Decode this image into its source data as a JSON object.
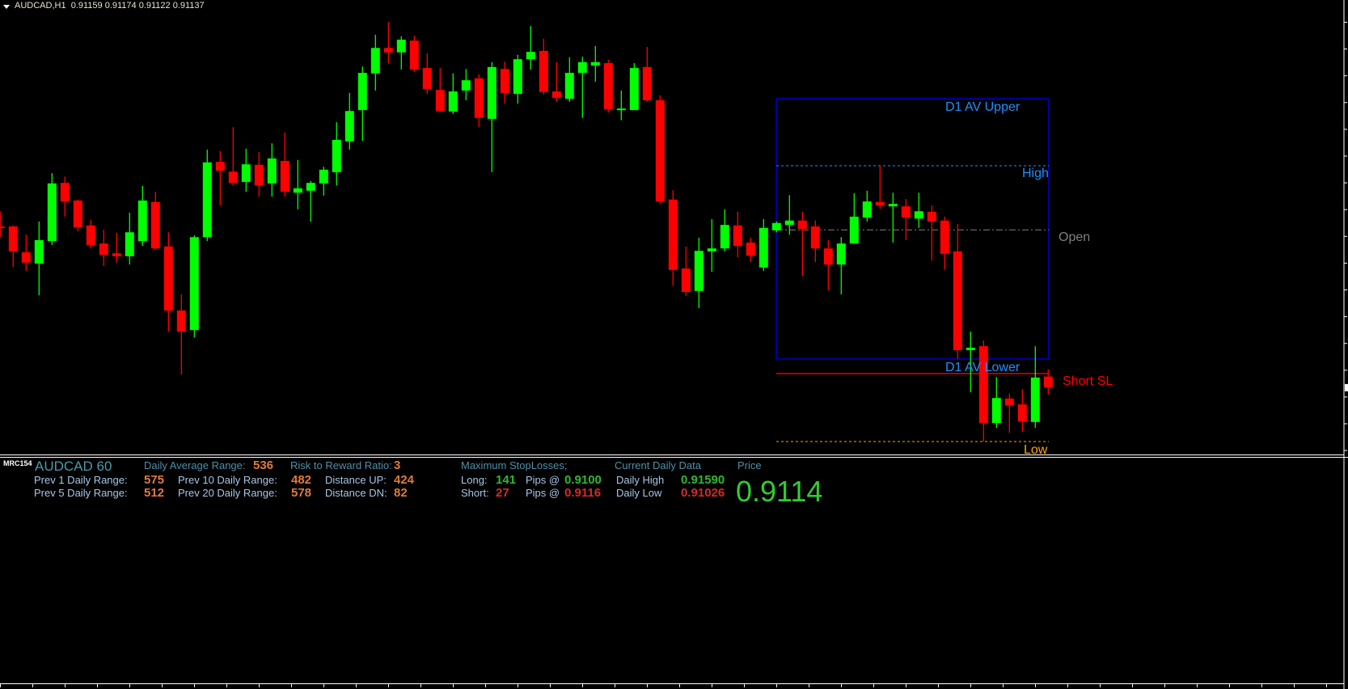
{
  "header": {
    "symbol_tf": "AUDCAD,H1",
    "ohlc": "0.91159 0.91174 0.91122 0.91137"
  },
  "chart_labels": {
    "d1_upper": "D1 AV Upper",
    "high": "High",
    "open": "Open",
    "d1_lower": "D1 AV Lower",
    "short_sl": "Short SL",
    "low": "Low"
  },
  "colors": {
    "bull": "#00ff00",
    "bear": "#ff0000",
    "box": "#0000a0",
    "high": "#1e90ff",
    "open": "#808080",
    "short_sl": "#ff0000",
    "low": "#ffa500"
  },
  "chart_data": {
    "type": "candlestick",
    "timeframe": "H1",
    "levels": {
      "d1_av_upper": 0.91727,
      "high": 0.9159,
      "open": 0.91459,
      "d1_av_lower": 0.91195,
      "short_sl": 0.91165,
      "low": 0.91026
    },
    "current_price": 0.91137,
    "box_start_index": 60,
    "candles_ohlc": [
      [
        0.91466,
        0.91497,
        0.91443,
        0.91464
      ],
      [
        0.91466,
        0.91468,
        0.91383,
        0.91415
      ],
      [
        0.91413,
        0.91449,
        0.91375,
        0.91392
      ],
      [
        0.9139,
        0.91476,
        0.91325,
        0.91438
      ],
      [
        0.91436,
        0.91575,
        0.91428,
        0.91554
      ],
      [
        0.91555,
        0.91568,
        0.91486,
        0.91517
      ],
      [
        0.91519,
        0.91521,
        0.91456,
        0.91464
      ],
      [
        0.91468,
        0.91479,
        0.91421,
        0.91428
      ],
      [
        0.91431,
        0.91459,
        0.91385,
        0.91408
      ],
      [
        0.91411,
        0.91453,
        0.91392,
        0.91405
      ],
      [
        0.91405,
        0.91494,
        0.91388,
        0.91454
      ],
      [
        0.91436,
        0.91549,
        0.91426,
        0.91519
      ],
      [
        0.91516,
        0.91537,
        0.91418,
        0.91421
      ],
      [
        0.91425,
        0.91454,
        0.91251,
        0.91294
      ],
      [
        0.91294,
        0.91327,
        0.91163,
        0.91251
      ],
      [
        0.91254,
        0.91448,
        0.91239,
        0.91444
      ],
      [
        0.91444,
        0.91623,
        0.91436,
        0.91597
      ],
      [
        0.91598,
        0.9162,
        0.91509,
        0.9158
      ],
      [
        0.91578,
        0.91669,
        0.91549,
        0.91555
      ],
      [
        0.91557,
        0.91625,
        0.91537,
        0.91593
      ],
      [
        0.91592,
        0.91618,
        0.91527,
        0.9155
      ],
      [
        0.91554,
        0.91636,
        0.91527,
        0.91605
      ],
      [
        0.916,
        0.91658,
        0.91527,
        0.91537
      ],
      [
        0.91535,
        0.91602,
        0.91501,
        0.91544
      ],
      [
        0.91539,
        0.91559,
        0.91476,
        0.91555
      ],
      [
        0.91554,
        0.91588,
        0.91529,
        0.91582
      ],
      [
        0.91577,
        0.91679,
        0.9155,
        0.91643
      ],
      [
        0.9164,
        0.91739,
        0.91623,
        0.91702
      ],
      [
        0.91704,
        0.91793,
        0.91641,
        0.9178
      ],
      [
        0.91779,
        0.91858,
        0.91744,
        0.91831
      ],
      [
        0.91831,
        0.91884,
        0.918,
        0.91822
      ],
      [
        0.91822,
        0.91855,
        0.91787,
        0.91848
      ],
      [
        0.91846,
        0.91856,
        0.91782,
        0.91787
      ],
      [
        0.9179,
        0.9182,
        0.91737,
        0.91747
      ],
      [
        0.91745,
        0.9179,
        0.91702,
        0.91702
      ],
      [
        0.91701,
        0.91779,
        0.91696,
        0.91742
      ],
      [
        0.91744,
        0.91788,
        0.91724,
        0.91765
      ],
      [
        0.91769,
        0.91777,
        0.91669,
        0.91688
      ],
      [
        0.91686,
        0.91802,
        0.91577,
        0.91792
      ],
      [
        0.91788,
        0.91803,
        0.91717,
        0.91739
      ],
      [
        0.91737,
        0.91817,
        0.91717,
        0.91808
      ],
      [
        0.91808,
        0.91876,
        0.91787,
        0.91823
      ],
      [
        0.91825,
        0.9185,
        0.91736,
        0.91741
      ],
      [
        0.91742,
        0.91802,
        0.91721,
        0.91729
      ],
      [
        0.91727,
        0.91812,
        0.91721,
        0.9178
      ],
      [
        0.9178,
        0.91813,
        0.91688,
        0.91802
      ],
      [
        0.91795,
        0.91835,
        0.91762,
        0.91802
      ],
      [
        0.918,
        0.91807,
        0.91699,
        0.91706
      ],
      [
        0.91706,
        0.91744,
        0.91683,
        0.91707
      ],
      [
        0.91704,
        0.918,
        0.91704,
        0.9179
      ],
      [
        0.91792,
        0.91833,
        0.91721,
        0.91724
      ],
      [
        0.91724,
        0.91734,
        0.91512,
        0.91517
      ],
      [
        0.91521,
        0.9154,
        0.91345,
        0.91377
      ],
      [
        0.9138,
        0.91425,
        0.91324,
        0.91332
      ],
      [
        0.91334,
        0.91443,
        0.91299,
        0.91416
      ],
      [
        0.91415,
        0.91481,
        0.91373,
        0.91421
      ],
      [
        0.91421,
        0.91501,
        0.91415,
        0.91469
      ],
      [
        0.91468,
        0.91496,
        0.91403,
        0.91426
      ],
      [
        0.91433,
        0.91443,
        0.91393,
        0.91406
      ],
      [
        0.91382,
        0.91481,
        0.91375,
        0.91463
      ],
      [
        0.91458,
        0.91476,
        0.91454,
        0.91473
      ],
      [
        0.91469,
        0.9153,
        0.91449,
        0.91478
      ],
      [
        0.91478,
        0.91496,
        0.91365,
        0.91461
      ],
      [
        0.91466,
        0.91478,
        0.91393,
        0.91421
      ],
      [
        0.91421,
        0.91438,
        0.91335,
        0.91388
      ],
      [
        0.91388,
        0.91444,
        0.91327,
        0.91431
      ],
      [
        0.91431,
        0.91534,
        0.91431,
        0.91486
      ],
      [
        0.91484,
        0.91539,
        0.91476,
        0.91517
      ],
      [
        0.91516,
        0.9159,
        0.91502,
        0.91509
      ],
      [
        0.91507,
        0.91535,
        0.91433,
        0.91512
      ],
      [
        0.91507,
        0.91522,
        0.91438,
        0.91484
      ],
      [
        0.91482,
        0.91535,
        0.91463,
        0.91497
      ],
      [
        0.91496,
        0.91509,
        0.91396,
        0.91476
      ],
      [
        0.91478,
        0.91486,
        0.91378,
        0.9141
      ],
      [
        0.91415,
        0.91471,
        0.91195,
        0.91213
      ],
      [
        0.91213,
        0.91251,
        0.91127,
        0.91218
      ],
      [
        0.91221,
        0.91233,
        0.91026,
        0.91064
      ],
      [
        0.91064,
        0.91158,
        0.91054,
        0.91115
      ],
      [
        0.91114,
        0.91124,
        0.91044,
        0.911
      ],
      [
        0.91102,
        0.91133,
        0.91046,
        0.91067
      ],
      [
        0.91066,
        0.91221,
        0.91054,
        0.91157
      ],
      [
        0.91159,
        0.91174,
        0.91122,
        0.91137
      ]
    ]
  },
  "panel": {
    "indicator_name": "MRC154",
    "title": "AUDCAD 60",
    "daily_avg_range_label": "Daily Average Range:",
    "daily_avg_range": "536",
    "rr_label": "Risk to Reward Ratio:",
    "rr": "3",
    "prev1_label": "Prev 1 Daily Range:",
    "prev1": "575",
    "prev5_label": "Prev 5 Daily Range:",
    "prev5": "512",
    "prev10_label": "Prev 10 Daily Range:",
    "prev10": "482",
    "prev20_label": "Prev 20 Daily Range:",
    "prev20": "578",
    "dist_up_label": "Distance UP:",
    "dist_up": "424",
    "dist_dn_label": "Distance DN:",
    "dist_dn": "82",
    "max_sl_label": "Maximum StopLosses;",
    "long_label": "Long:",
    "long_pips": "141",
    "pips_at": "Pips @",
    "long_price": "0.9100",
    "short_label": "Short:",
    "short_pips": "27",
    "short_price": "0.9116",
    "daily_data_label": "Current Daily Data",
    "daily_high_label": "Daily High",
    "daily_high": "0.91590",
    "daily_low_label": "Daily Low",
    "daily_low": "0.91026",
    "price_label": "Price",
    "price": "0.9114"
  }
}
